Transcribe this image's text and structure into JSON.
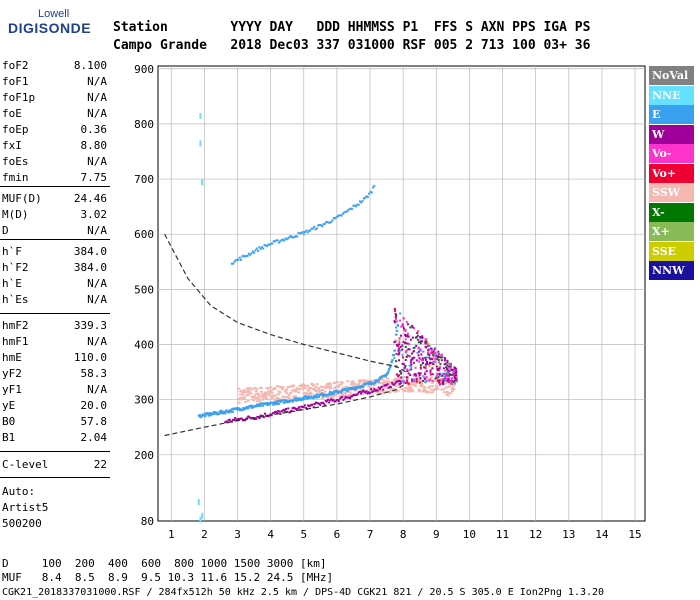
{
  "logo": {
    "brand": "Lowell",
    "product": "DIGISONDE"
  },
  "header": {
    "row1": "Station        YYYY DAY   DDD HHMMSS P1  FFS S AXN PPS IGA PS",
    "row2": "Campo Grande   2018 Dec03 337 031000 RSF 005 2 713 100 03+ 36"
  },
  "params": [
    {
      "name": "foF2",
      "value": "8.100"
    },
    {
      "name": "foF1",
      "value": "N/A"
    },
    {
      "name": "foF1p",
      "value": "N/A"
    },
    {
      "name": "foE",
      "value": "N/A"
    },
    {
      "name": "foEp",
      "value": "0.36"
    },
    {
      "name": "fxI",
      "value": "8.80"
    },
    {
      "name": "foEs",
      "value": "N/A"
    },
    {
      "name": "fmin",
      "value": "7.75"
    },
    {
      "name": "MUF(D)",
      "value": "24.46"
    },
    {
      "name": "M(D)",
      "value": "3.02"
    },
    {
      "name": "D",
      "value": "N/A"
    },
    {
      "name": "h`F",
      "value": "384.0"
    },
    {
      "name": "h`F2",
      "value": "384.0"
    },
    {
      "name": "h`E",
      "value": "N/A"
    },
    {
      "name": "h`Es",
      "value": "N/A"
    },
    {
      "name": "hmF2",
      "value": "339.3"
    },
    {
      "name": "hmF1",
      "value": "N/A"
    },
    {
      "name": "hmE",
      "value": "110.0"
    },
    {
      "name": "yF2",
      "value": "58.3"
    },
    {
      "name": "yF1",
      "value": "N/A"
    },
    {
      "name": "yE",
      "value": "20.0"
    },
    {
      "name": "B0",
      "value": "57.8"
    },
    {
      "name": "B1",
      "value": "2.04"
    },
    {
      "name": "C-level",
      "value": "22"
    }
  ],
  "autoscale": {
    "line1": "Auto:",
    "line2": "Artist5",
    "line3": "500200"
  },
  "legend": [
    {
      "label": "NoVal",
      "bg": "#808080",
      "fg": "#ffffff"
    },
    {
      "label": "NNE",
      "bg": "#66e0ff",
      "fg": "#ffffff"
    },
    {
      "label": "E",
      "bg": "#3aa0f0",
      "fg": "#ffffff"
    },
    {
      "label": "W",
      "bg": "#a0009a",
      "fg": "#ffffff"
    },
    {
      "label": "Vo-",
      "bg": "#ff33cc",
      "fg": "#ffffff"
    },
    {
      "label": "Vo+",
      "bg": "#ee0033",
      "fg": "#ffffff"
    },
    {
      "label": "SSW",
      "bg": "#f4b8b0",
      "fg": "#ffffff"
    },
    {
      "label": "X-",
      "bg": "#007700",
      "fg": "#ffffff"
    },
    {
      "label": "X+",
      "bg": "#88bb55",
      "fg": "#ffffff"
    },
    {
      "label": "SSE",
      "bg": "#cccc00",
      "fg": "#ffffff"
    },
    {
      "label": "NNW",
      "bg": "#1a10a0",
      "fg": "#ffffff"
    }
  ],
  "footer": {
    "row1": "D     100  200  400  600  800 1000 1500 3000 [km]",
    "row2": "MUF   8.4  8.5  8.9  9.5 10.3 11.6 15.2 24.5 [MHz]",
    "row3": "CGK21_2018337031000.RSF / 284fx512h 50 kHz 2.5 km / DPS-4D CGK21 821 / 20.5 S 305.0 E Ion2Png 1.3.20"
  },
  "chart_data": {
    "type": "scatter",
    "title": "",
    "xlabel": "",
    "ylabel": "",
    "xlim": [
      0.6,
      15.3
    ],
    "ylim": [
      80,
      905
    ],
    "xticks": [
      1,
      2,
      3,
      4,
      5,
      6,
      7,
      8,
      9,
      10,
      11,
      12,
      13,
      14,
      15
    ],
    "yticks": [
      80,
      200,
      300,
      400,
      500,
      600,
      700,
      800,
      900
    ],
    "grid": true,
    "series": [
      {
        "name": "E",
        "color": "#3aa0f0",
        "kind": "F2 o-trace",
        "x": [
          1.8,
          2.2,
          2.6,
          3.0,
          3.5,
          4.0,
          4.5,
          5.0,
          5.5,
          6.0,
          6.5,
          7.0,
          7.3,
          7.5,
          7.6,
          7.7,
          7.8
        ],
        "y": [
          272,
          276,
          280,
          285,
          290,
          295,
          300,
          305,
          310,
          316,
          323,
          332,
          340,
          350,
          365,
          390,
          440
        ]
      },
      {
        "name": "E",
        "color": "#3aa0f0",
        "kind": "second-hop trace",
        "x": [
          2.8,
          3.2,
          3.6,
          4.0,
          4.5,
          5.0,
          5.5,
          6.0,
          6.4,
          6.8,
          7.0,
          7.1
        ],
        "y": [
          550,
          562,
          575,
          585,
          595,
          605,
          618,
          632,
          648,
          665,
          678,
          690
        ]
      },
      {
        "name": "W",
        "color": "#a0009a",
        "kind": "x-trace",
        "x": [
          2.6,
          3.0,
          3.5,
          4.0,
          4.5,
          5.0,
          5.5,
          6.0,
          6.5,
          7.0,
          7.5,
          7.9
        ],
        "y": [
          262,
          266,
          270,
          276,
          282,
          288,
          295,
          302,
          310,
          318,
          326,
          335
        ]
      },
      {
        "name": "SSW",
        "color": "#f4b8b0",
        "kind": "spread-F band",
        "x": [
          3.0,
          4.0,
          5.0,
          6.0,
          7.0,
          8.0,
          9.0,
          9.5
        ],
        "y": [
          310,
          312,
          316,
          320,
          325,
          330,
          328,
          320
        ]
      }
    ],
    "profile_curve": {
      "x": [
        0.8,
        1.5,
        2.2,
        3.0,
        4.0,
        5.0,
        6.0,
        7.0,
        7.8,
        8.1
      ],
      "y": [
        600,
        520,
        470,
        440,
        418,
        400,
        385,
        370,
        360,
        350
      ]
    },
    "lower_curve": {
      "x": [
        0.8,
        2.0,
        3.0,
        4.0,
        5.0,
        6.0,
        7.0,
        7.8,
        8.1
      ],
      "y": [
        235,
        250,
        262,
        272,
        282,
        292,
        305,
        318,
        330
      ]
    }
  }
}
